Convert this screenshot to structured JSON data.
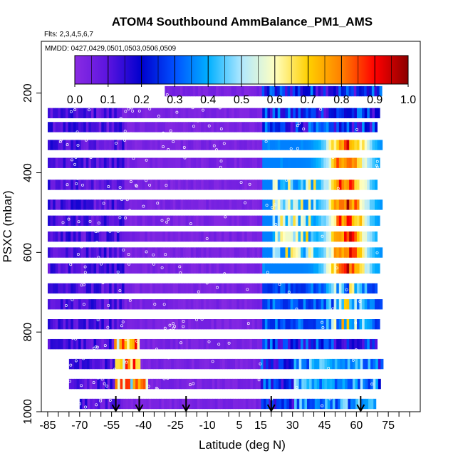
{
  "chart_data": {
    "type": "heatmap",
    "title": "ATOM4 Southbound AmmBalance_PM1_AMS",
    "flights_label": "Flts: 2,3,4,5,6,7",
    "dates_label": "MMDD: 0427,0429,0501,0503,0506,0509",
    "xlabel": "Latitude (deg N)",
    "ylabel": "PSXC (mbar)",
    "xlim": [
      -88,
      90
    ],
    "ylim": [
      1000,
      70
    ],
    "y_reversed": true,
    "x_ticks": [
      "-85",
      "-70",
      "-55",
      "-40",
      "-25",
      "-10",
      "5",
      "15",
      "30",
      "45",
      "60",
      "75"
    ],
    "x_tick_values": [
      -85,
      -70,
      -55,
      -40,
      -25,
      -10,
      5,
      15,
      30,
      45,
      60,
      75
    ],
    "x_minor_ticks": [
      -80,
      -75,
      -65,
      -60,
      -50,
      -45,
      -35,
      -30,
      -20,
      -15,
      0,
      10,
      20,
      25,
      35,
      40,
      50,
      55,
      65,
      70,
      80,
      85
    ],
    "y_ticks": [
      "200",
      "400",
      "600",
      "800",
      "1000"
    ],
    "y_tick_values": [
      200,
      400,
      600,
      800,
      1000
    ],
    "colorbar": {
      "min": 0.0,
      "max": 1.0,
      "ticks": [
        "0.0",
        "0.1",
        "0.2",
        "0.3",
        "0.4",
        "0.5",
        "0.6",
        "0.7",
        "0.8",
        "0.9",
        "1.0"
      ],
      "tick_values": [
        0,
        0.1,
        0.2,
        0.3,
        0.4,
        0.5,
        0.6,
        0.7,
        0.8,
        0.9,
        1.0
      ],
      "colors": [
        "#8a2be2",
        "#5b14e0",
        "#0000cd",
        "#0050ff",
        "#00b0ff",
        "#b0e8ff",
        "#ffffc0",
        "#ffd000",
        "#ff8000",
        "#ff0000",
        "#8b0000"
      ]
    },
    "grid": false,
    "pressure_levels": [
      195,
      250,
      285,
      330,
      375,
      430,
      480,
      520,
      560,
      600,
      640,
      690,
      730,
      780,
      830,
      880,
      930,
      980
    ],
    "latitude_extent": {
      "min_lat": -85,
      "max_lat": 72
    },
    "regions": [
      {
        "lat": [
          -85,
          -70
        ],
        "p": [
          250,
          1000
        ],
        "value": 0.12
      },
      {
        "lat": [
          -70,
          -50
        ],
        "p": [
          200,
          1000
        ],
        "value": 0.08
      },
      {
        "lat": [
          -50,
          15
        ],
        "p": [
          180,
          1000
        ],
        "value": 0.03
      },
      {
        "lat": [
          15,
          72
        ],
        "p": [
          180,
          1000
        ],
        "value": 0.2
      },
      {
        "lat": [
          48,
          68
        ],
        "p": [
          330,
          650
        ],
        "value": 0.88
      },
      {
        "lat": [
          -52,
          -43
        ],
        "p": [
          820,
          880
        ],
        "value": 0.75
      },
      {
        "lat": [
          -53,
          -40
        ],
        "p": [
          920,
          970
        ],
        "value": 0.7
      }
    ],
    "arrows_lat": [
      -53,
      -42,
      -20,
      20,
      62
    ]
  }
}
